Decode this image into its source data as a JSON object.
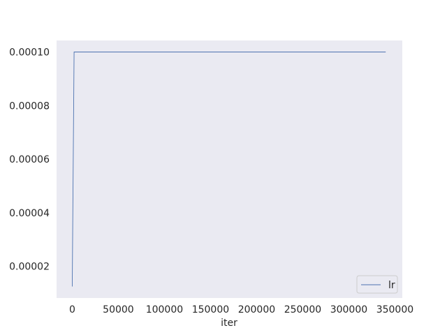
{
  "chart_data": {
    "type": "line",
    "xlabel": "iter",
    "ylabel": "",
    "xlim": [
      -17000,
      358000
    ],
    "ylim": [
      8.2e-06,
      0.0001043
    ],
    "xticks": [
      0,
      50000,
      100000,
      150000,
      200000,
      250000,
      300000,
      350000
    ],
    "xtick_labels": [
      "0",
      "50000",
      "100000",
      "150000",
      "200000",
      "250000",
      "300000",
      "350000"
    ],
    "yticks": [
      2e-05,
      4e-05,
      6e-05,
      8e-05,
      0.0001
    ],
    "ytick_labels": [
      "0.00002",
      "0.00004",
      "0.00006",
      "0.00008",
      "0.00010"
    ],
    "grid": false,
    "legend_position": "lower-right",
    "series": [
      {
        "name": "lr",
        "color": "#4c72b0",
        "x": [
          0,
          2000,
          340000
        ],
        "y": [
          1.25e-05,
          0.0001,
          0.0001
        ]
      }
    ]
  },
  "colors": {
    "axes_background": "#eaeaf2",
    "text": "#262626",
    "legend_border": "#cccccc"
  }
}
